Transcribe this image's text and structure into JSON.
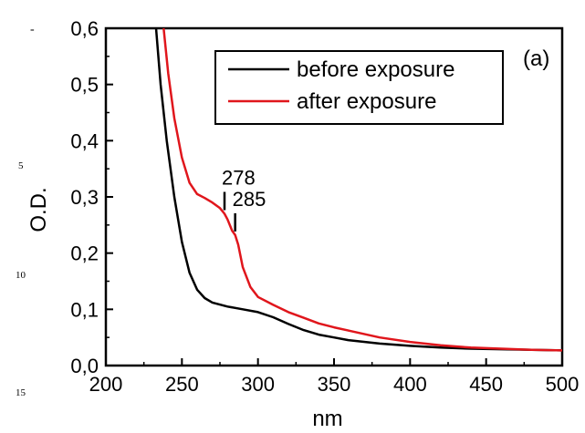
{
  "margin": {
    "dash": "-",
    "numbers": [
      "5",
      "10",
      "15"
    ]
  },
  "chart_data": {
    "type": "line",
    "panel_label": "(a)",
    "xlabel": "nm",
    "ylabel": "O.D.",
    "xlim": [
      200,
      500
    ],
    "ylim": [
      0,
      0.6
    ],
    "xticks": [
      200,
      250,
      300,
      350,
      400,
      450,
      500
    ],
    "xtick_labels": [
      "200",
      "250",
      "300",
      "350",
      "400",
      "450",
      "500"
    ],
    "yticks": [
      0,
      0.1,
      0.2,
      0.3,
      0.4,
      0.5,
      0.6
    ],
    "ytick_labels": [
      "0,0",
      "0,1",
      "0,2",
      "0,3",
      "0,4",
      "0,5",
      "0,6"
    ],
    "grid": false,
    "legend_position": "top-right",
    "series": [
      {
        "name": "before exposure",
        "color": "#000000",
        "x": [
          233,
          236,
          240,
          245,
          250,
          255,
          260,
          265,
          270,
          280,
          290,
          300,
          310,
          320,
          330,
          340,
          350,
          360,
          380,
          400,
          420,
          440,
          460,
          480,
          500
        ],
        "y": [
          0.6,
          0.5,
          0.4,
          0.3,
          0.22,
          0.165,
          0.135,
          0.12,
          0.112,
          0.105,
          0.1,
          0.095,
          0.086,
          0.074,
          0.063,
          0.055,
          0.05,
          0.045,
          0.039,
          0.035,
          0.032,
          0.03,
          0.029,
          0.028,
          0.027
        ]
      },
      {
        "name": "after exposure",
        "color": "#e0161c",
        "x": [
          238,
          241,
          245,
          250,
          255,
          260,
          265,
          270,
          275,
          278,
          280,
          283,
          285,
          287,
          290,
          295,
          300,
          310,
          320,
          330,
          340,
          350,
          360,
          380,
          400,
          420,
          440,
          460,
          480,
          500
        ],
        "y": [
          0.6,
          0.52,
          0.44,
          0.37,
          0.325,
          0.305,
          0.298,
          0.29,
          0.28,
          0.27,
          0.26,
          0.24,
          0.232,
          0.215,
          0.175,
          0.14,
          0.122,
          0.108,
          0.095,
          0.085,
          0.075,
          0.068,
          0.062,
          0.05,
          0.042,
          0.036,
          0.032,
          0.03,
          0.028,
          0.027
        ]
      }
    ],
    "annotations": [
      {
        "text": "278",
        "x": 278,
        "y": 0.27
      },
      {
        "text": "285",
        "x": 285,
        "y": 0.232
      }
    ]
  }
}
